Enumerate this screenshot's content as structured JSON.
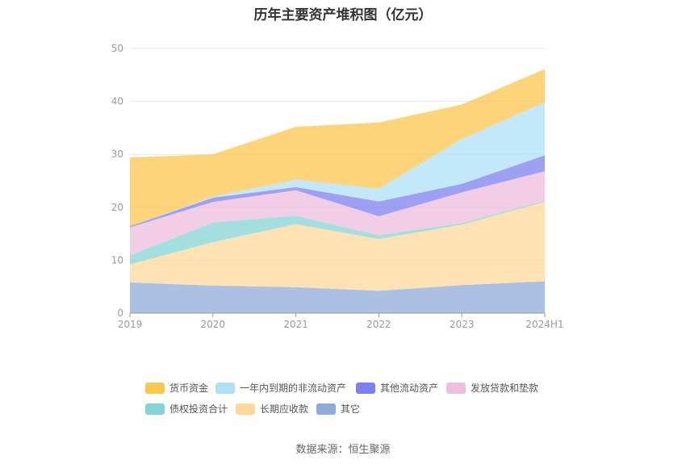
{
  "chart_data": {
    "type": "area",
    "stacked": true,
    "title": "历年主要资产堆积图（亿元）",
    "categories": [
      "2019",
      "2020",
      "2021",
      "2022",
      "2023",
      "2024H1"
    ],
    "ylim": [
      0,
      50
    ],
    "yticks": [
      0,
      10,
      20,
      30,
      40,
      50
    ],
    "xlabel": "",
    "ylabel": "",
    "grid": true,
    "legend_position": "bottom",
    "series": [
      {
        "name": "其它",
        "color": "#8fabd9",
        "values": [
          5.8,
          5.2,
          4.9,
          4.2,
          5.3,
          6.0
        ]
      },
      {
        "name": "长期应收款",
        "color": "#ffd89a",
        "values": [
          3.4,
          8.2,
          11.9,
          9.8,
          11.4,
          15.0
        ]
      },
      {
        "name": "债权投资合计",
        "color": "#86d4d6",
        "values": [
          1.7,
          3.7,
          1.6,
          0.7,
          0.3,
          0.2
        ]
      },
      {
        "name": "发放贷款和垫款",
        "color": "#eebedd",
        "values": [
          5.3,
          3.9,
          4.8,
          3.6,
          5.8,
          5.6
        ]
      },
      {
        "name": "其他流动资产",
        "color": "#7d80f0",
        "values": [
          0.2,
          0.8,
          0.6,
          2.8,
          1.6,
          3.0
        ]
      },
      {
        "name": "一年内到期的非流动资产",
        "color": "#aee0f8",
        "values": [
          0.0,
          0.2,
          1.4,
          2.4,
          8.5,
          10.0
        ]
      },
      {
        "name": "货币资金",
        "color": "#fdc64d",
        "values": [
          13.0,
          8.0,
          10.0,
          12.5,
          6.5,
          6.3
        ]
      }
    ]
  },
  "legend": {
    "items": [
      {
        "name": "货币资金",
        "color": "#fdc64d"
      },
      {
        "name": "一年内到期的非流动资产",
        "color": "#aee0f8"
      },
      {
        "name": "其他流动资产",
        "color": "#7d80f0"
      },
      {
        "name": "发放贷款和垫款",
        "color": "#eebedd"
      },
      {
        "name": "债权投资合计",
        "color": "#86d4d6"
      },
      {
        "name": "长期应收款",
        "color": "#ffd89a"
      },
      {
        "name": "其它",
        "color": "#8fabd9"
      }
    ]
  },
  "source_note": "数据来源：恒生聚源"
}
